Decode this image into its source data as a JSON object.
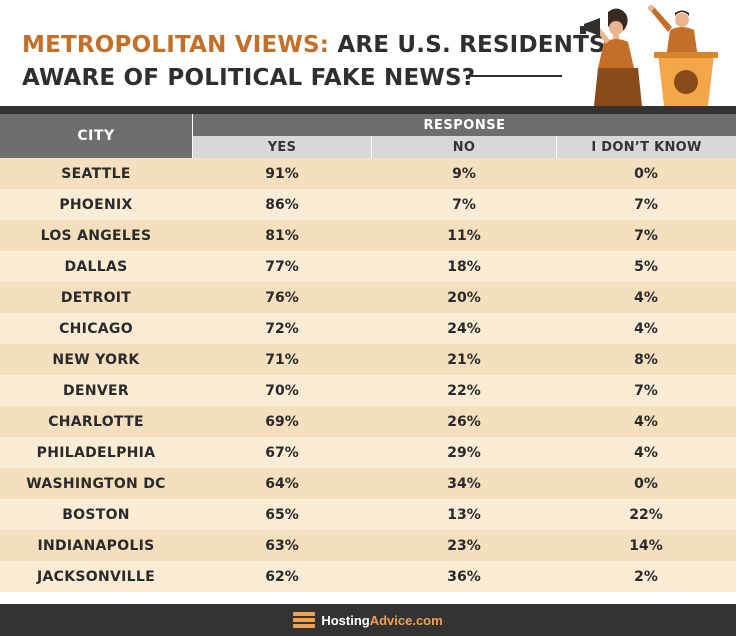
{
  "header": {
    "title_accent": "METROPOLITAN VIEWS:",
    "title_rest": " ARE U.S. RESIDENTS",
    "title_line2": "AWARE OF POLITICAL FAKE NEWS?"
  },
  "footer": {
    "brand_part1": "Hosting",
    "brand_part2": "Advice.com"
  },
  "colors": {
    "accent": "#c36f2a",
    "header_bg": "#6e6e6e",
    "row_odd": "#f4dfbf",
    "row_even": "#fbecd6",
    "bar": "#333333"
  },
  "chart_data": {
    "type": "table",
    "columns": {
      "city": "CITY",
      "group": "RESPONSE",
      "yes": "YES",
      "no": "NO",
      "dont_know": "I DON’T KNOW"
    },
    "rows": [
      {
        "city": "SEATTLE",
        "yes": "91%",
        "no": "9%",
        "dont_know": "0%"
      },
      {
        "city": "PHOENIX",
        "yes": "86%",
        "no": "7%",
        "dont_know": "7%"
      },
      {
        "city": "LOS ANGELES",
        "yes": "81%",
        "no": "11%",
        "dont_know": "7%"
      },
      {
        "city": "DALLAS",
        "yes": "77%",
        "no": "18%",
        "dont_know": "5%"
      },
      {
        "city": "DETROIT",
        "yes": "76%",
        "no": "20%",
        "dont_know": "4%"
      },
      {
        "city": "CHICAGO",
        "yes": "72%",
        "no": "24%",
        "dont_know": "4%"
      },
      {
        "city": "NEW YORK",
        "yes": "71%",
        "no": "21%",
        "dont_know": "8%"
      },
      {
        "city": "DENVER",
        "yes": "70%",
        "no": "22%",
        "dont_know": "7%"
      },
      {
        "city": "CHARLOTTE",
        "yes": "69%",
        "no": "26%",
        "dont_know": "4%"
      },
      {
        "city": "PHILADELPHIA",
        "yes": "67%",
        "no": "29%",
        "dont_know": "4%"
      },
      {
        "city": "WASHINGTON DC",
        "yes": "64%",
        "no": "34%",
        "dont_know": "0%"
      },
      {
        "city": "BOSTON",
        "yes": "65%",
        "no": "13%",
        "dont_know": "22%"
      },
      {
        "city": "INDIANAPOLIS",
        "yes": "63%",
        "no": "23%",
        "dont_know": "14%"
      },
      {
        "city": "JACKSONVILLE",
        "yes": "62%",
        "no": "36%",
        "dont_know": "2%"
      }
    ]
  }
}
